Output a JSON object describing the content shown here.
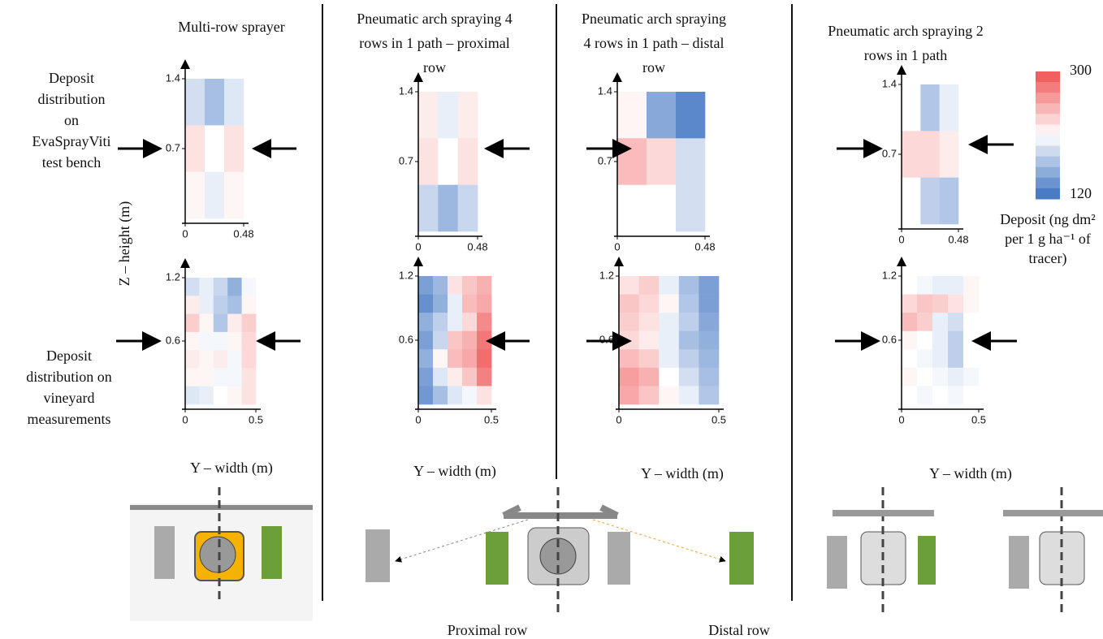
{
  "chart_data": [
    {
      "type": "heatmap",
      "xlim": [
        0,
        0.48
      ],
      "ylim": [
        0,
        1.4
      ],
      "xticks": [
        0,
        0.48
      ],
      "yticks": [
        0.7,
        1.4
      ],
      "values": [
        [
          190,
          170,
          195
        ],
        [
          225,
          210,
          225
        ],
        [
          215,
          200,
          215
        ]
      ]
    },
    {
      "type": "heatmap",
      "xlim": [
        0,
        0.48
      ],
      "ylim": [
        0,
        1.4
      ],
      "xticks": [
        0,
        0.48
      ],
      "yticks": [
        0.7,
        1.4
      ],
      "values": [
        [
          220,
          200,
          220
        ],
        [
          225,
          210,
          225
        ],
        [
          185,
          165,
          185
        ]
      ]
    },
    {
      "type": "heatmap",
      "xlim": [
        0,
        0.48
      ],
      "ylim": [
        0,
        1.4
      ],
      "xticks": [
        0,
        0.48
      ],
      "yticks": [
        0.7,
        1.4
      ],
      "values": [
        [
          215,
          155,
          135
        ],
        [
          245,
          230,
          190
        ],
        [
          210,
          210,
          190
        ]
      ]
    },
    {
      "type": "heatmap",
      "xlim": [
        0,
        0.48
      ],
      "ylim": [
        0,
        1.4
      ],
      "xticks": [
        0,
        0.48
      ],
      "yticks": [
        0.7,
        1.4
      ],
      "values": [
        [
          210,
          175,
          200
        ],
        [
          230,
          230,
          220
        ],
        [
          210,
          180,
          175
        ]
      ]
    },
    {
      "type": "heatmap",
      "xlim": [
        0,
        0.5
      ],
      "ylim": [
        0,
        1.2
      ],
      "xticks": [
        0,
        0.5
      ],
      "yticks": [
        0.6,
        1.2
      ],
      "values": [
        [
          190,
          200,
          185,
          160,
          205
        ],
        [
          220,
          200,
          180,
          170,
          215
        ],
        [
          235,
          215,
          175,
          220,
          235
        ],
        [
          215,
          205,
          205,
          215,
          230
        ],
        [
          220,
          215,
          220,
          205,
          230
        ],
        [
          215,
          215,
          205,
          205,
          225
        ],
        [
          195,
          200,
          210,
          215,
          225
        ]
      ]
    },
    {
      "type": "heatmap",
      "xlim": [
        0,
        0.5
      ],
      "ylim": [
        0,
        1.2
      ],
      "xticks": [
        0,
        0.5
      ],
      "yticks": [
        0.6,
        1.2
      ],
      "values": [
        [
          150,
          165,
          225,
          240,
          250
        ],
        [
          140,
          160,
          200,
          245,
          255
        ],
        [
          160,
          180,
          200,
          230,
          270
        ],
        [
          150,
          185,
          240,
          250,
          280
        ],
        [
          160,
          215,
          245,
          255,
          285
        ],
        [
          150,
          195,
          220,
          240,
          275
        ],
        [
          145,
          170,
          195,
          205,
          225
        ]
      ]
    },
    {
      "type": "heatmap",
      "xlim": [
        0,
        0.5
      ],
      "ylim": [
        0,
        1.2
      ],
      "xticks": [
        0,
        0.5
      ],
      "yticks": [
        0.6,
        1.2
      ],
      "values": [
        [
          225,
          235,
          200,
          170,
          150
        ],
        [
          240,
          230,
          215,
          175,
          150
        ],
        [
          235,
          225,
          200,
          180,
          155
        ],
        [
          230,
          220,
          200,
          170,
          160
        ],
        [
          245,
          235,
          200,
          180,
          165
        ],
        [
          260,
          250,
          210,
          190,
          170
        ],
        [
          255,
          240,
          215,
          200,
          175
        ]
      ]
    },
    {
      "type": "heatmap",
      "xlim": [
        0,
        0.5
      ],
      "ylim": [
        0,
        1.2
      ],
      "xticks": [
        0,
        0.5
      ],
      "yticks": [
        0.6,
        1.2
      ],
      "values": [
        [
          210,
          205,
          200,
          200,
          215
        ],
        [
          230,
          240,
          235,
          225,
          215
        ],
        [
          245,
          235,
          200,
          190,
          210
        ],
        [
          215,
          210,
          200,
          180,
          210
        ],
        [
          210,
          205,
          200,
          180,
          210
        ],
        [
          215,
          210,
          205,
          200,
          205
        ],
        [
          210,
          205,
          210,
          205,
          210
        ]
      ]
    }
  ],
  "column_titles": [
    [
      "Multi-row sprayer"
    ],
    [
      "Pneumatic arch spraying 4",
      "rows in 1 path – proximal",
      "row"
    ],
    [
      "Pneumatic arch spraying",
      "4 rows in 1 path – distal",
      "row"
    ],
    [
      "Pneumatic arch spraying 2",
      "rows in 1 path"
    ]
  ],
  "row_labels": [
    [
      "Deposit",
      "distribution",
      "on",
      "EvaSprayViti",
      "test bench"
    ],
    [
      "Deposit",
      "distribution on",
      "vineyard",
      "measurements"
    ]
  ],
  "y_axis_label": "Z – height (m)",
  "x_axis_label": "Y – width (m)",
  "colorbar": {
    "ticks": [
      120,
      300
    ],
    "label": [
      "Deposit (ng dm²",
      "per 1 g ha⁻¹ of",
      "tracer)"
    ]
  },
  "row_names": [
    "Proximal row",
    "Distal row"
  ]
}
